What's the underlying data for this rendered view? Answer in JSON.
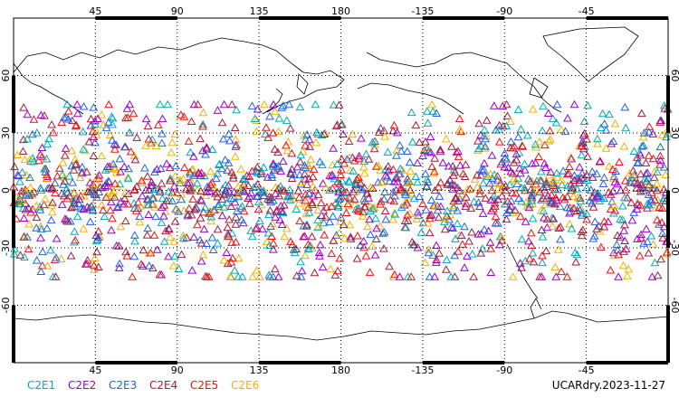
{
  "figure": {
    "date_label": "UCARdry.2023-11-27"
  },
  "chart_data": {
    "type": "scatter",
    "projection": "cylindrical-equidistant",
    "center_longitude": 180,
    "lon_range": [
      0,
      360
    ],
    "lat_range": [
      -90,
      90
    ],
    "grid": true,
    "marker": "open-triangle",
    "legend_position": "bottom-left",
    "lon_tick_labels": [
      "45",
      "90",
      "135",
      "180",
      "-135",
      "-90",
      "-45"
    ],
    "lon_tick_values": [
      45,
      90,
      135,
      180,
      225,
      270,
      315
    ],
    "lat_tick_labels": [
      "60",
      "30",
      "0",
      "-30",
      "-60"
    ],
    "lat_tick_values": [
      60,
      30,
      0,
      -30,
      -60
    ],
    "latitude_band_of_observations": [
      -45,
      45
    ],
    "series": [
      {
        "name": "C2E1",
        "color": "#00aabb"
      },
      {
        "name": "C2E2",
        "color": "#9900cc"
      },
      {
        "name": "C2E3",
        "color": "#1e64e6"
      },
      {
        "name": "C2E4",
        "color": "#a01e3c"
      },
      {
        "name": "C2E5",
        "color": "#ee1111"
      },
      {
        "name": "C2E6",
        "color": "#f0b400"
      }
    ]
  }
}
